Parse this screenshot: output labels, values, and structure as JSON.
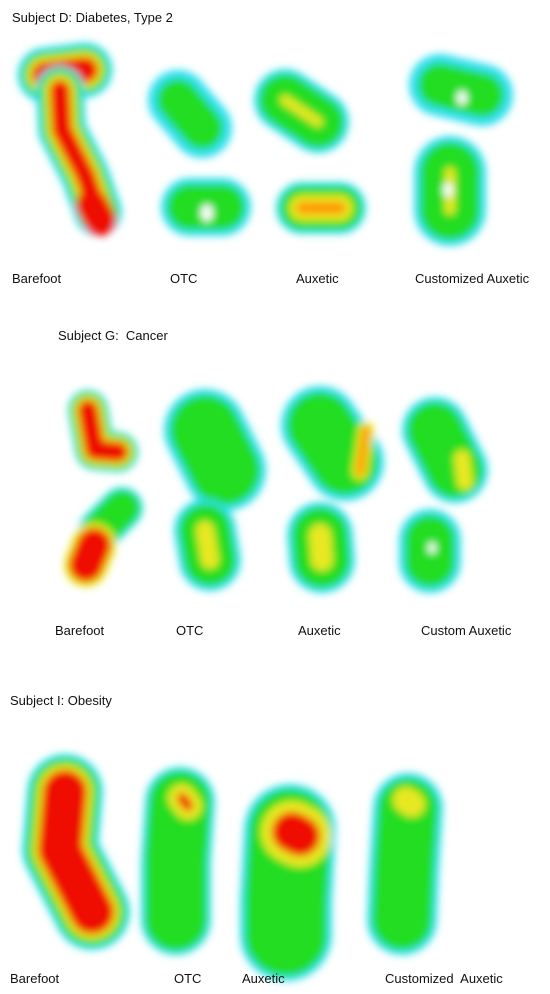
{
  "panels": [
    {
      "title": "Subject D: Diabetes, Type 2",
      "labels": [
        "Barefoot",
        "OTC",
        "Auxetic",
        "Customized Auxetic"
      ]
    },
    {
      "title": "Subject G:  Cancer",
      "labels": [
        "Barefoot",
        "OTC",
        "Auxetic",
        "Custom Auxetic"
      ]
    },
    {
      "title": "Subject I: Obesity",
      "labels": [
        "Barefoot",
        "OTC",
        "Auxetic",
        "Customized  Auxetic"
      ]
    }
  ]
}
